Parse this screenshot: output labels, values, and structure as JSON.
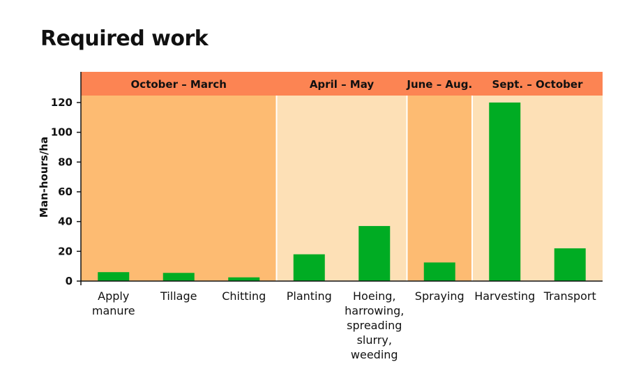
{
  "chart_data": {
    "type": "bar",
    "title": "Required work",
    "ylabel": "Man-hours/ha",
    "xlabel": "",
    "ylim": [
      0,
      120
    ],
    "yticks": [
      0,
      20,
      40,
      60,
      80,
      100,
      120
    ],
    "grid": false,
    "categories": [
      "Apply\nmanure",
      "Tillage",
      "Chitting",
      "Planting",
      "Hoeing,\nharrowing,\nspreading\nslurry,\nweeding",
      "Spraying",
      "Harvesting",
      "Transport"
    ],
    "values": [
      6,
      5.5,
      2.5,
      18,
      37,
      12.5,
      120,
      22
    ],
    "periods": [
      {
        "label": "October – March",
        "start": 0,
        "end": 3,
        "color": "#fdbb72"
      },
      {
        "label": "April – May",
        "start": 3,
        "end": 5,
        "color": "#fde0b6"
      },
      {
        "label": "June – Aug.",
        "start": 5,
        "end": 6,
        "color": "#fdbb72"
      },
      {
        "label": "Sept. – October",
        "start": 6,
        "end": 8,
        "color": "#fde0b6"
      }
    ],
    "colors": {
      "bar": "#00ac23",
      "header": "#fc8453",
      "axis": "#111111",
      "divider": "#ffffff"
    }
  }
}
